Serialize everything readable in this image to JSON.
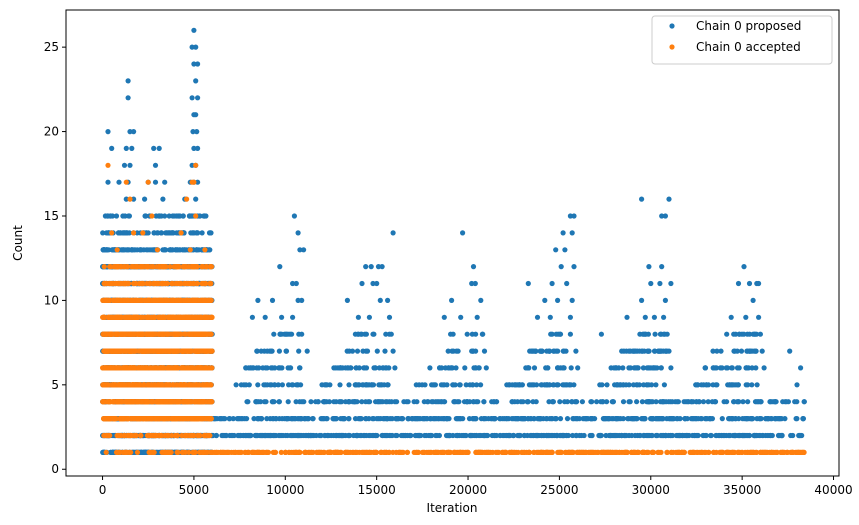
{
  "chart_data": {
    "type": "scatter",
    "title": "",
    "xlabel": "Iteration",
    "ylabel": "Count",
    "xlim": [
      -2000,
      40300
    ],
    "ylim": [
      -0.4,
      27.2
    ],
    "xticks": [
      0,
      5000,
      10000,
      15000,
      20000,
      25000,
      30000,
      35000,
      40000
    ],
    "xtick_labels": [
      "0",
      "5000",
      "10000",
      "15000",
      "20000",
      "25000",
      "30000",
      "35000",
      "40000"
    ],
    "yticks": [
      0,
      5,
      10,
      15,
      20,
      25
    ],
    "ytick_labels": [
      "0",
      "5",
      "10",
      "15",
      "20",
      "25"
    ],
    "grid": false,
    "legend_position": "top-right",
    "marker": "circle",
    "series": [
      {
        "name": "Chain 0 proposed",
        "color": "#1f77b4",
        "description_of_density": "Dense points at counts 1-15 for iterations 0-6000; sparse counts up to 26 near 5000; after 6000 dense at counts 1-4 with periodic spikes up to ~16",
        "points": [
          [
            5000,
            26
          ],
          [
            4900,
            25
          ],
          [
            5100,
            25
          ],
          [
            5000,
            24
          ],
          [
            5200,
            24
          ],
          [
            5100,
            23
          ],
          [
            1400,
            23
          ],
          [
            4900,
            22
          ],
          [
            5200,
            22
          ],
          [
            1400,
            22
          ],
          [
            5000,
            21
          ],
          [
            5100,
            21
          ],
          [
            4950,
            20
          ],
          [
            5150,
            20
          ],
          [
            1500,
            20
          ],
          [
            1700,
            20
          ],
          [
            300,
            20
          ],
          [
            5000,
            19
          ],
          [
            5200,
            19
          ],
          [
            500,
            19
          ],
          [
            2800,
            19
          ],
          [
            3100,
            19
          ],
          [
            1300,
            19
          ],
          [
            1600,
            19
          ],
          [
            4900,
            18
          ],
          [
            5100,
            18
          ],
          [
            2900,
            18
          ],
          [
            1500,
            18
          ],
          [
            1200,
            18
          ],
          [
            5000,
            17
          ],
          [
            5200,
            17
          ],
          [
            300,
            17
          ],
          [
            900,
            17
          ],
          [
            1400,
            17
          ],
          [
            2500,
            17
          ],
          [
            2900,
            17
          ],
          [
            3400,
            17
          ],
          [
            4800,
            17
          ],
          [
            5100,
            16
          ],
          [
            1300,
            16
          ],
          [
            1700,
            16
          ],
          [
            2300,
            16
          ],
          [
            3300,
            16
          ],
          [
            4500,
            16
          ],
          [
            29500,
            16
          ],
          [
            31000,
            16
          ],
          [
            10500,
            15
          ],
          [
            30600,
            15
          ],
          [
            30800,
            15
          ],
          [
            25600,
            15
          ],
          [
            25800,
            15
          ],
          [
            10700,
            14
          ],
          [
            15900,
            14
          ],
          [
            19700,
            14
          ],
          [
            25200,
            14
          ],
          [
            25700,
            14
          ],
          [
            10800,
            13
          ],
          [
            11000,
            13
          ],
          [
            24800,
            13
          ],
          [
            25300,
            13
          ],
          [
            35100,
            12
          ],
          [
            9700,
            12
          ],
          [
            14400,
            12
          ],
          [
            14700,
            12
          ],
          [
            15100,
            12
          ],
          [
            15300,
            12
          ],
          [
            20300,
            12
          ],
          [
            25100,
            12
          ],
          [
            25800,
            12
          ],
          [
            29900,
            12
          ],
          [
            30600,
            12
          ],
          [
            35400,
            11
          ],
          [
            35800,
            11
          ],
          [
            35900,
            11
          ],
          [
            10400,
            11
          ],
          [
            10600,
            11
          ],
          [
            14200,
            11
          ],
          [
            14800,
            11
          ],
          [
            15000,
            11
          ],
          [
            20200,
            11
          ],
          [
            20400,
            11
          ],
          [
            23300,
            11
          ],
          [
            24600,
            11
          ],
          [
            25400,
            11
          ],
          [
            30000,
            11
          ],
          [
            30500,
            11
          ],
          [
            31100,
            11
          ],
          [
            34800,
            11
          ],
          [
            8500,
            10
          ],
          [
            9300,
            10
          ],
          [
            10700,
            10
          ],
          [
            10900,
            10
          ],
          [
            13400,
            10
          ],
          [
            15200,
            10
          ],
          [
            15600,
            10
          ],
          [
            19100,
            10
          ],
          [
            20700,
            10
          ],
          [
            24200,
            10
          ],
          [
            24900,
            10
          ],
          [
            25700,
            10
          ],
          [
            29500,
            10
          ],
          [
            30800,
            10
          ],
          [
            35600,
            10
          ],
          [
            8200,
            9
          ],
          [
            8900,
            9
          ],
          [
            9800,
            9
          ],
          [
            10400,
            9
          ],
          [
            14000,
            9
          ],
          [
            14600,
            9
          ],
          [
            15700,
            9
          ],
          [
            18700,
            9
          ],
          [
            19600,
            9
          ],
          [
            20500,
            9
          ],
          [
            23800,
            9
          ],
          [
            24500,
            9
          ],
          [
            25600,
            9
          ],
          [
            28700,
            9
          ],
          [
            29700,
            9
          ],
          [
            30200,
            9
          ],
          [
            30700,
            9
          ],
          [
            34400,
            9
          ],
          [
            35200,
            9
          ],
          [
            35900,
            9
          ],
          [
            38400,
            4
          ],
          [
            38000,
            5
          ],
          [
            38200,
            6
          ],
          [
            37600,
            7
          ],
          [
            27300,
            8
          ],
          [
            20800,
            8
          ],
          [
            15800,
            8
          ],
          [
            10900,
            8
          ],
          [
            30900,
            8
          ],
          [
            36000,
            8
          ],
          [
            20900,
            7
          ],
          [
            15900,
            7
          ],
          [
            11200,
            7
          ],
          [
            36100,
            7
          ],
          [
            31000,
            7
          ],
          [
            25900,
            7
          ],
          [
            10800,
            6
          ],
          [
            16000,
            6
          ],
          [
            21000,
            6
          ],
          [
            26000,
            6
          ],
          [
            31100,
            6
          ],
          [
            36200,
            6
          ]
        ]
      },
      {
        "name": "Chain 0 accepted",
        "color": "#ff7f0e",
        "description_of_density": "Dense points at counts 1-13 for iterations 0-6000 with sparse up to 18; after 6000 nearly all points at count 1",
        "points": [
          [
            300,
            18
          ],
          [
            5100,
            18
          ],
          [
            1300,
            17
          ],
          [
            2500,
            17
          ],
          [
            4900,
            17
          ],
          [
            5000,
            17
          ],
          [
            1500,
            16
          ],
          [
            4600,
            16
          ],
          [
            2700,
            15
          ],
          [
            5100,
            15
          ],
          [
            500,
            14
          ],
          [
            1700,
            14
          ],
          [
            2200,
            14
          ],
          [
            4300,
            14
          ],
          [
            800,
            13
          ],
          [
            3000,
            13
          ],
          [
            4800,
            13
          ],
          [
            5600,
            13
          ],
          [
            900,
            2
          ],
          [
            1600,
            2
          ],
          [
            2100,
            2
          ],
          [
            2900,
            2
          ],
          [
            3400,
            2
          ],
          [
            4100,
            2
          ],
          [
            4500,
            2
          ],
          [
            5200,
            2
          ],
          [
            5700,
            2
          ],
          [
            200,
            1
          ],
          [
            800,
            1
          ],
          [
            1300,
            1
          ],
          [
            2600,
            1
          ],
          [
            3500,
            1
          ],
          [
            4400,
            1
          ],
          [
            5900,
            1
          ],
          [
            38300,
            1
          ]
        ]
      }
    ]
  }
}
